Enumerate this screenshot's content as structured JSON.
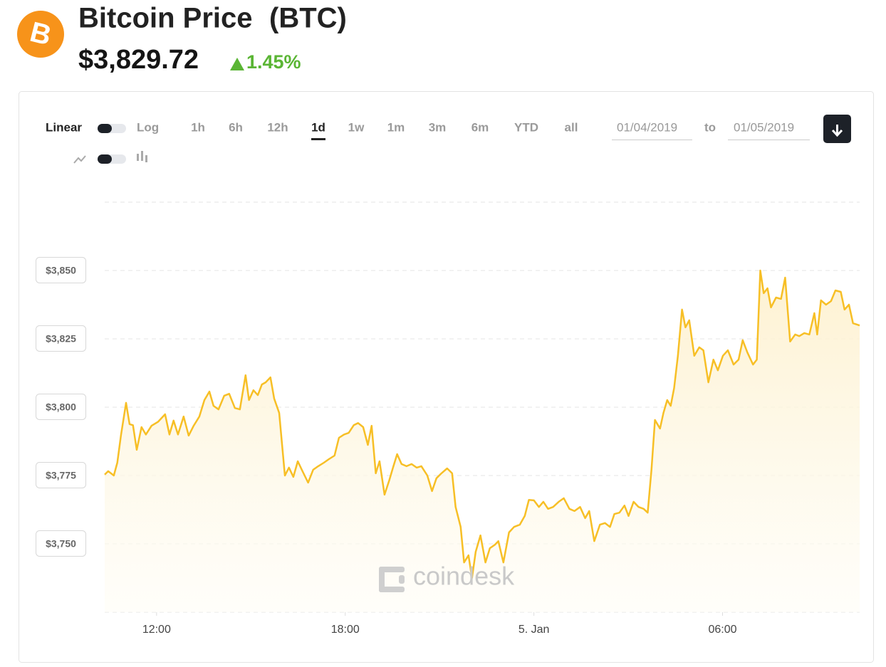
{
  "header": {
    "title": "Bitcoin Price",
    "symbol": "(BTC)",
    "price": "$3,829.72",
    "change": "1.45%"
  },
  "controls": {
    "scale": [
      "Linear",
      "Log"
    ],
    "ranges": [
      "1h",
      "6h",
      "12h",
      "1d",
      "1w",
      "1m",
      "3m",
      "6m",
      "YTD",
      "all"
    ],
    "active_range": 3,
    "date_from": "01/04/2019",
    "date_sep": "to",
    "date_to": "01/05/2019"
  },
  "watermark": "coindesk",
  "chart_data": {
    "type": "line",
    "color": "#f7bf26",
    "grid": true,
    "x": [
      10.35,
      10.46,
      10.64,
      10.75,
      10.87,
      11.03,
      11.14,
      11.25,
      11.37,
      11.52,
      11.66,
      11.84,
      12.05,
      12.27,
      12.41,
      12.54,
      12.68,
      12.86,
      13.02,
      13.18,
      13.36,
      13.52,
      13.68,
      13.81,
      13.97,
      14.15,
      14.31,
      14.49,
      14.65,
      14.83,
      14.94,
      15.08,
      15.22,
      15.35,
      15.47,
      15.62,
      15.74,
      15.9,
      16.08,
      16.21,
      16.35,
      16.49,
      16.64,
      16.82,
      16.98,
      17.14,
      17.32,
      17.48,
      17.66,
      17.8,
      17.96,
      18.11,
      18.27,
      18.41,
      18.57,
      18.72,
      18.84,
      18.97,
      19.09,
      19.25,
      19.4,
      19.52,
      19.65,
      19.79,
      19.95,
      20.11,
      20.27,
      20.42,
      20.61,
      20.76,
      20.9,
      21.06,
      21.24,
      21.4,
      21.51,
      21.67,
      21.78,
      21.92,
      22.03,
      22.15,
      22.3,
      22.46,
      22.6,
      22.76,
      22.87,
      23.03,
      23.21,
      23.37,
      23.55,
      23.71,
      23.84,
      24.0,
      24.16,
      24.3,
      24.45,
      24.61,
      24.79,
      24.95,
      25.13,
      25.29,
      25.47,
      25.63,
      25.76,
      25.92,
      26.1,
      26.26,
      26.42,
      26.56,
      26.72,
      26.88,
      27.01,
      27.17,
      27.33,
      27.49,
      27.62,
      27.74,
      27.85,
      28.01,
      28.12,
      28.24,
      28.35,
      28.46,
      28.58,
      28.71,
      28.82,
      28.94,
      29.1,
      29.26,
      29.39,
      29.55,
      29.71,
      29.85,
      30.01,
      30.17,
      30.35,
      30.51,
      30.64,
      30.79,
      30.97,
      31.09,
      31.2,
      31.31,
      31.43,
      31.54,
      31.7,
      31.86,
      31.99,
      32.15,
      32.31,
      32.44,
      32.6,
      32.76,
      32.92,
      33.01,
      33.13,
      33.29,
      33.45,
      33.59,
      33.76,
      33.88,
      34.02,
      34.15,
      34.36
    ],
    "values": [
      3775.3,
      3776.6,
      3775,
      3779.7,
      3790,
      3801.6,
      3793.8,
      3793.4,
      3784.4,
      3792.7,
      3790,
      3793.2,
      3794.7,
      3797.4,
      3790,
      3795.1,
      3790,
      3796.6,
      3789.6,
      3793.2,
      3796.6,
      3802.6,
      3805.7,
      3800.5,
      3799.2,
      3804.2,
      3804.9,
      3799.7,
      3799.2,
      3811.7,
      3802.6,
      3806.2,
      3804.4,
      3808.3,
      3809.1,
      3810.9,
      3803.1,
      3797.9,
      3775,
      3777.9,
      3774.5,
      3780.2,
      3776.6,
      3772.4,
      3777.1,
      3778.4,
      3779.7,
      3781,
      3782.3,
      3788.8,
      3790,
      3790.6,
      3793.4,
      3794.2,
      3792.7,
      3786.2,
      3793.2,
      3775.8,
      3780.2,
      3768,
      3773.2,
      3777.9,
      3782.8,
      3779.2,
      3778.4,
      3779.2,
      3777.9,
      3778.4,
      3775,
      3769.3,
      3774,
      3775.8,
      3777.6,
      3775.8,
      3763.5,
      3756.2,
      3743.2,
      3745.8,
      3737.5,
      3747.1,
      3753.1,
      3743.2,
      3748.4,
      3749.7,
      3751,
      3743.2,
      3754.2,
      3756.2,
      3757,
      3760.2,
      3766.1,
      3765.9,
      3763.5,
      3765.4,
      3762.8,
      3763.5,
      3765.4,
      3766.7,
      3762.8,
      3762,
      3763.5,
      3759.4,
      3762,
      3751,
      3757,
      3757.6,
      3756.2,
      3760.9,
      3761.4,
      3764,
      3760.2,
      3765.4,
      3763.5,
      3762.8,
      3761.4,
      3777.1,
      3795.3,
      3792.2,
      3797.9,
      3802.6,
      3800.5,
      3807,
      3818.8,
      3835.7,
      3829.2,
      3831.8,
      3818.8,
      3821.9,
      3820.8,
      3809.1,
      3817.4,
      3813.5,
      3818.8,
      3820.8,
      3815.6,
      3817.4,
      3824.5,
      3820,
      3815.6,
      3817.4,
      3850,
      3841.7,
      3843.5,
      3836.5,
      3840.1,
      3839.6,
      3847.4,
      3824,
      3826.6,
      3826,
      3827.1,
      3826.6,
      3834.4,
      3826.6,
      3839.1,
      3837.5,
      3838.8,
      3842.7,
      3842.2,
      3835.7,
      3837.5,
      3830.7,
      3829.9
    ],
    "xlim": [
      10.35,
      34.36
    ],
    "xticks": [
      {
        "value": 12,
        "label": "12:00"
      },
      {
        "value": 18,
        "label": "18:00"
      },
      {
        "value": 24,
        "label": "5. Jan"
      },
      {
        "value": 30,
        "label": "06:00"
      }
    ],
    "ylim": [
      3725,
      3875
    ],
    "yticks": [
      {
        "value": 3750,
        "label": "$3,750"
      },
      {
        "value": 3775,
        "label": "$3,775"
      },
      {
        "value": 3800,
        "label": "$3,800"
      },
      {
        "value": 3825,
        "label": "$3,825"
      },
      {
        "value": 3850,
        "label": "$3,850"
      }
    ]
  }
}
